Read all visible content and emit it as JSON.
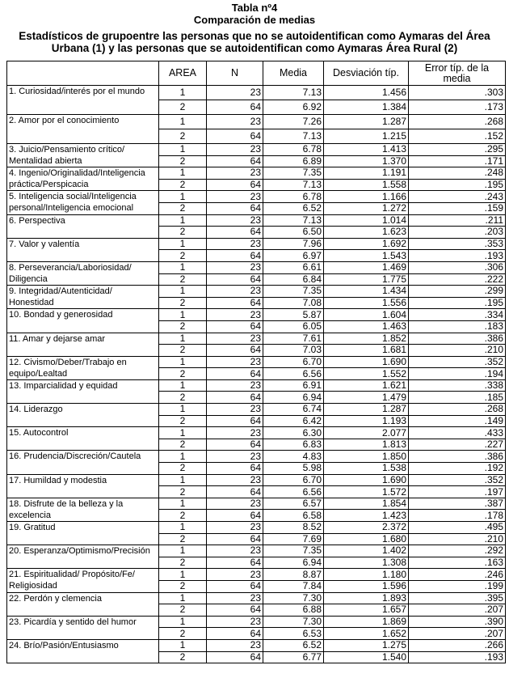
{
  "title": "Tabla nº4",
  "subtitle": "Comparación de medias",
  "caption": "Estadísticos de grupoentre las personas que no se autoidentifican como Aymaras del Área Urbana (1) y las personas que se autoidentifican como Aymaras Área Rural (2)",
  "headers": [
    "",
    "AREA",
    "N",
    "Media",
    "Desviación típ.",
    "Error típ. de la media"
  ],
  "groups": [
    {
      "label": "1. Curiosidad/interés por el mundo",
      "rows": [
        [
          "1",
          "23",
          "7.13",
          "1.456",
          ".303"
        ],
        [
          "2",
          "64",
          "6.92",
          "1.384",
          ".173"
        ]
      ]
    },
    {
      "label": "2.  Amor por el conocimiento",
      "rows": [
        [
          "1",
          "23",
          "7.26",
          "1.287",
          ".268"
        ],
        [
          "2",
          "64",
          "7.13",
          "1.215",
          ".152"
        ]
      ]
    },
    {
      "label": "3. Juicio/Pensamiento crítico/ Mentalidad abierta",
      "rows": [
        [
          "1",
          "23",
          "6.78",
          "1.413",
          ".295"
        ],
        [
          "2",
          "64",
          "6.89",
          "1.370",
          ".171"
        ]
      ]
    },
    {
      "label": "4. Ingenio/Originalidad/Inteligencia práctica/Perspicacia",
      "rows": [
        [
          "1",
          "23",
          "7.35",
          "1.191",
          ".248"
        ],
        [
          "2",
          "64",
          "7.13",
          "1.558",
          ".195"
        ]
      ]
    },
    {
      "label": "5. Inteligencia social/Inteligencia personal/Inteligencia emocional",
      "rows": [
        [
          "1",
          "23",
          "6.78",
          "1.166",
          ".243"
        ],
        [
          "2",
          "64",
          "6.52",
          "1.272",
          ".159"
        ]
      ]
    },
    {
      "label": "6.  Perspectiva",
      "rows": [
        [
          "1",
          "23",
          "7.13",
          "1.014",
          ".211"
        ],
        [
          "2",
          "64",
          "6.50",
          "1.623",
          ".203"
        ]
      ]
    },
    {
      "label": "7.   Valor y valentía",
      "rows": [
        [
          "1",
          "23",
          "7.96",
          "1.692",
          ".353"
        ],
        [
          "2",
          "64",
          "6.97",
          "1.543",
          ".193"
        ]
      ]
    },
    {
      "label": "8.  Perseverancia/Laboriosidad/ Diligencia",
      "rows": [
        [
          "1",
          "23",
          "6.61",
          "1.469",
          ".306"
        ],
        [
          "2",
          "64",
          "6.84",
          "1.775",
          ".222"
        ]
      ]
    },
    {
      "label": "9.  Integridad/Autenticidad/ Honestidad",
      "rows": [
        [
          "1",
          "23",
          "7.35",
          "1.434",
          ".299"
        ],
        [
          "2",
          "64",
          "7.08",
          "1.556",
          ".195"
        ]
      ]
    },
    {
      "label": "10. Bondad y generosidad",
      "rows": [
        [
          "1",
          "23",
          "5.87",
          "1.604",
          ".334"
        ],
        [
          "2",
          "64",
          "6.05",
          "1.463",
          ".183"
        ]
      ]
    },
    {
      "label": "11.  Amar y dejarse amar",
      "rows": [
        [
          "1",
          "23",
          "7.61",
          "1.852",
          ".386"
        ],
        [
          "2",
          "64",
          "7.03",
          "1.681",
          ".210"
        ]
      ]
    },
    {
      "label": "12. Civismo/Deber/Trabajo en equipo/Lealtad",
      "rows": [
        [
          "1",
          "23",
          "6.70",
          "1.690",
          ".352"
        ],
        [
          "2",
          "64",
          "6.56",
          "1.552",
          ".194"
        ]
      ]
    },
    {
      "label": "13. Imparcialidad y equidad",
      "rows": [
        [
          "1",
          "23",
          "6.91",
          "1.621",
          ".338"
        ],
        [
          "2",
          "64",
          "6.94",
          "1.479",
          ".185"
        ]
      ]
    },
    {
      "label": "14. Liderazgo",
      "rows": [
        [
          "1",
          "23",
          "6.74",
          "1.287",
          ".268"
        ],
        [
          "2",
          "64",
          "6.42",
          "1.193",
          ".149"
        ]
      ]
    },
    {
      "label": "15. Autocontrol",
      "rows": [
        [
          "1",
          "23",
          "6.30",
          "2.077",
          ".433"
        ],
        [
          "2",
          "64",
          "6.83",
          "1.813",
          ".227"
        ]
      ]
    },
    {
      "label": "16. Prudencia/Discreción/Cautela",
      "rows": [
        [
          "1",
          "23",
          "4.83",
          "1.850",
          ".386"
        ],
        [
          "2",
          "64",
          "5.98",
          "1.538",
          ".192"
        ]
      ]
    },
    {
      "label": "17. Humildad y modestia",
      "rows": [
        [
          "1",
          "23",
          "6.70",
          "1.690",
          ".352"
        ],
        [
          "2",
          "64",
          "6.56",
          "1.572",
          ".197"
        ]
      ]
    },
    {
      "label": "18. Disfrute de la belleza y la excelencia",
      "rows": [
        [
          "1",
          "23",
          "6.57",
          "1.854",
          ".387"
        ],
        [
          "2",
          "64",
          "6.58",
          "1.423",
          ".178"
        ]
      ]
    },
    {
      "label": "19. Gratitud",
      "rows": [
        [
          "1",
          "23",
          "8.52",
          "2.372",
          ".495"
        ],
        [
          "2",
          "64",
          "7.69",
          "1.680",
          ".210"
        ]
      ]
    },
    {
      "label": "20. Esperanza/Optimismo/Precisión",
      "rows": [
        [
          "1",
          "23",
          "7.35",
          "1.402",
          ".292"
        ],
        [
          "2",
          "64",
          "6.94",
          "1.308",
          ".163"
        ]
      ]
    },
    {
      "label": "21. Espiritualidad/ Propósito/Fe/ Religiosidad",
      "rows": [
        [
          "1",
          "23",
          "8.87",
          "1.180",
          ".246"
        ],
        [
          "2",
          "64",
          "7.84",
          "1.596",
          ".199"
        ]
      ]
    },
    {
      "label": "22. Perdón y clemencia",
      "rows": [
        [
          "1",
          "23",
          "7.30",
          "1.893",
          ".395"
        ],
        [
          "2",
          "64",
          "6.88",
          "1.657",
          ".207"
        ]
      ]
    },
    {
      "label": "23. Picardía y sentido del humor",
      "rows": [
        [
          "1",
          "23",
          "7.30",
          "1.869",
          ".390"
        ],
        [
          "2",
          "64",
          "6.53",
          "1.652",
          ".207"
        ]
      ]
    },
    {
      "label": "24. Brío/Pasión/Entusiasmo",
      "rows": [
        [
          "1",
          "23",
          "6.52",
          "1.275",
          ".266"
        ],
        [
          "2",
          "64",
          "6.77",
          "1.540",
          ".193"
        ]
      ]
    }
  ]
}
